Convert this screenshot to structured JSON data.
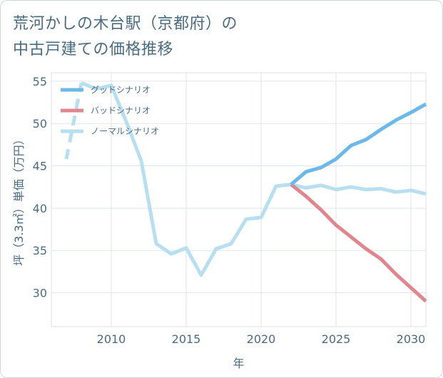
{
  "title": {
    "line1": "荒河かしの木台駅（京都府）の",
    "line2": "中古戸建ての価格推移"
  },
  "chart_data": {
    "type": "line",
    "xlabel": "年",
    "ylabel": "坪（3.3㎡）単価（万円）",
    "xlim": [
      2006,
      2031
    ],
    "ylim": [
      26,
      56
    ],
    "xticks": [
      2010,
      2015,
      2020,
      2025,
      2030
    ],
    "yticks": [
      30,
      35,
      40,
      45,
      50,
      55
    ],
    "grid": true,
    "legend_position": "top-left",
    "series": [
      {
        "name": "グッドシナリオ",
        "color": "#6bb8ea",
        "x": [
          2022,
          2023,
          2024,
          2025,
          2026,
          2027,
          2028,
          2029,
          2030,
          2031
        ],
        "y": [
          42.8,
          44.3,
          44.8,
          45.8,
          47.4,
          48.1,
          49.3,
          50.4,
          51.3,
          52.3
        ]
      },
      {
        "name": "バッドシナリオ",
        "color": "#e0868e",
        "x": [
          2022,
          2023,
          2024,
          2025,
          2026,
          2027,
          2028,
          2029,
          2030,
          2031
        ],
        "y": [
          42.8,
          41.4,
          39.8,
          38.0,
          36.6,
          35.2,
          34.0,
          32.2,
          30.6,
          29.0
        ]
      },
      {
        "name": "ノーマルシナリオ",
        "color": "#b7dff0",
        "x": [
          2007,
          2008,
          2009,
          2010,
          2011,
          2012,
          2013,
          2014,
          2015,
          2016,
          2017,
          2018,
          2019,
          2020,
          2021,
          2022,
          2023,
          2024,
          2025,
          2026,
          2027,
          2028,
          2029,
          2030,
          2031
        ],
        "y": [
          45.8,
          54.8,
          54.1,
          54.5,
          50.2,
          45.6,
          35.8,
          34.6,
          35.3,
          32.1,
          35.2,
          35.8,
          38.7,
          38.9,
          42.6,
          42.8,
          42.4,
          42.7,
          42.2,
          42.5,
          42.2,
          42.3,
          41.9,
          42.1,
          41.7
        ],
        "dash_segments": [
          [
            2007,
            2008
          ]
        ]
      }
    ]
  }
}
